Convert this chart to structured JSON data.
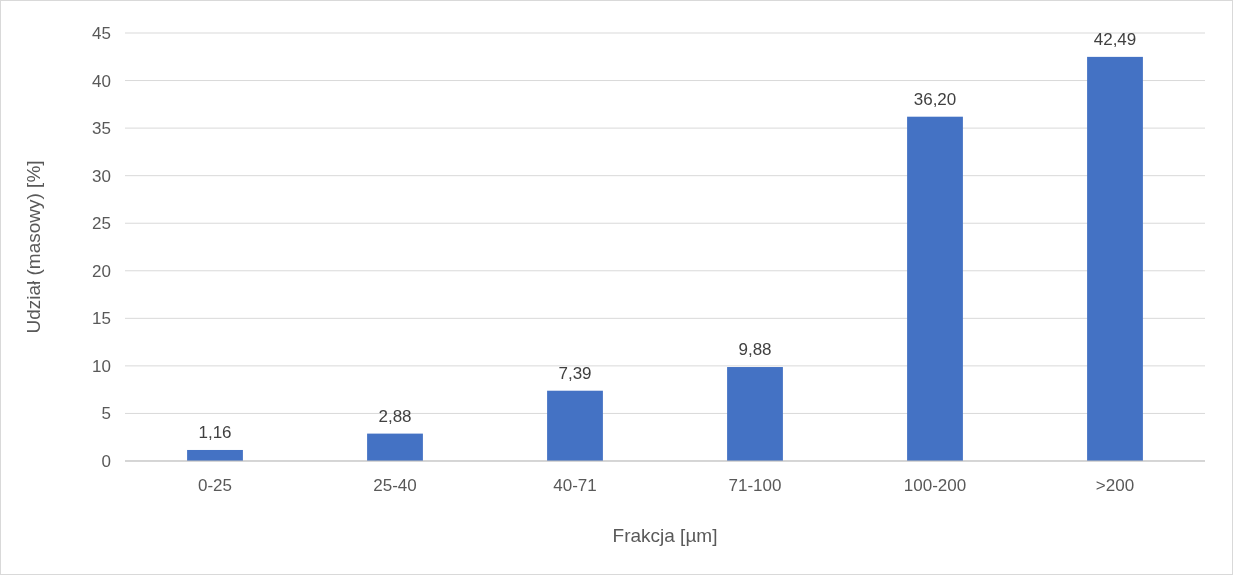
{
  "chart_data": {
    "type": "bar",
    "xlabel": "Frakcja [µm]",
    "ylabel": "Udział (masowy) [%]",
    "categories": [
      "0-25",
      "25-40",
      "40-71",
      "71-100",
      "100-200",
      ">200"
    ],
    "values": [
      1.16,
      2.88,
      7.39,
      9.88,
      36.2,
      42.49
    ],
    "value_labels": [
      "1,16",
      "2,88",
      "7,39",
      "9,88",
      "36,20",
      "42,49"
    ],
    "color": "#4472c4",
    "ylim": [
      0,
      45
    ],
    "yticks": [
      0,
      5,
      10,
      15,
      20,
      25,
      30,
      35,
      40,
      45
    ],
    "grid": "y"
  }
}
